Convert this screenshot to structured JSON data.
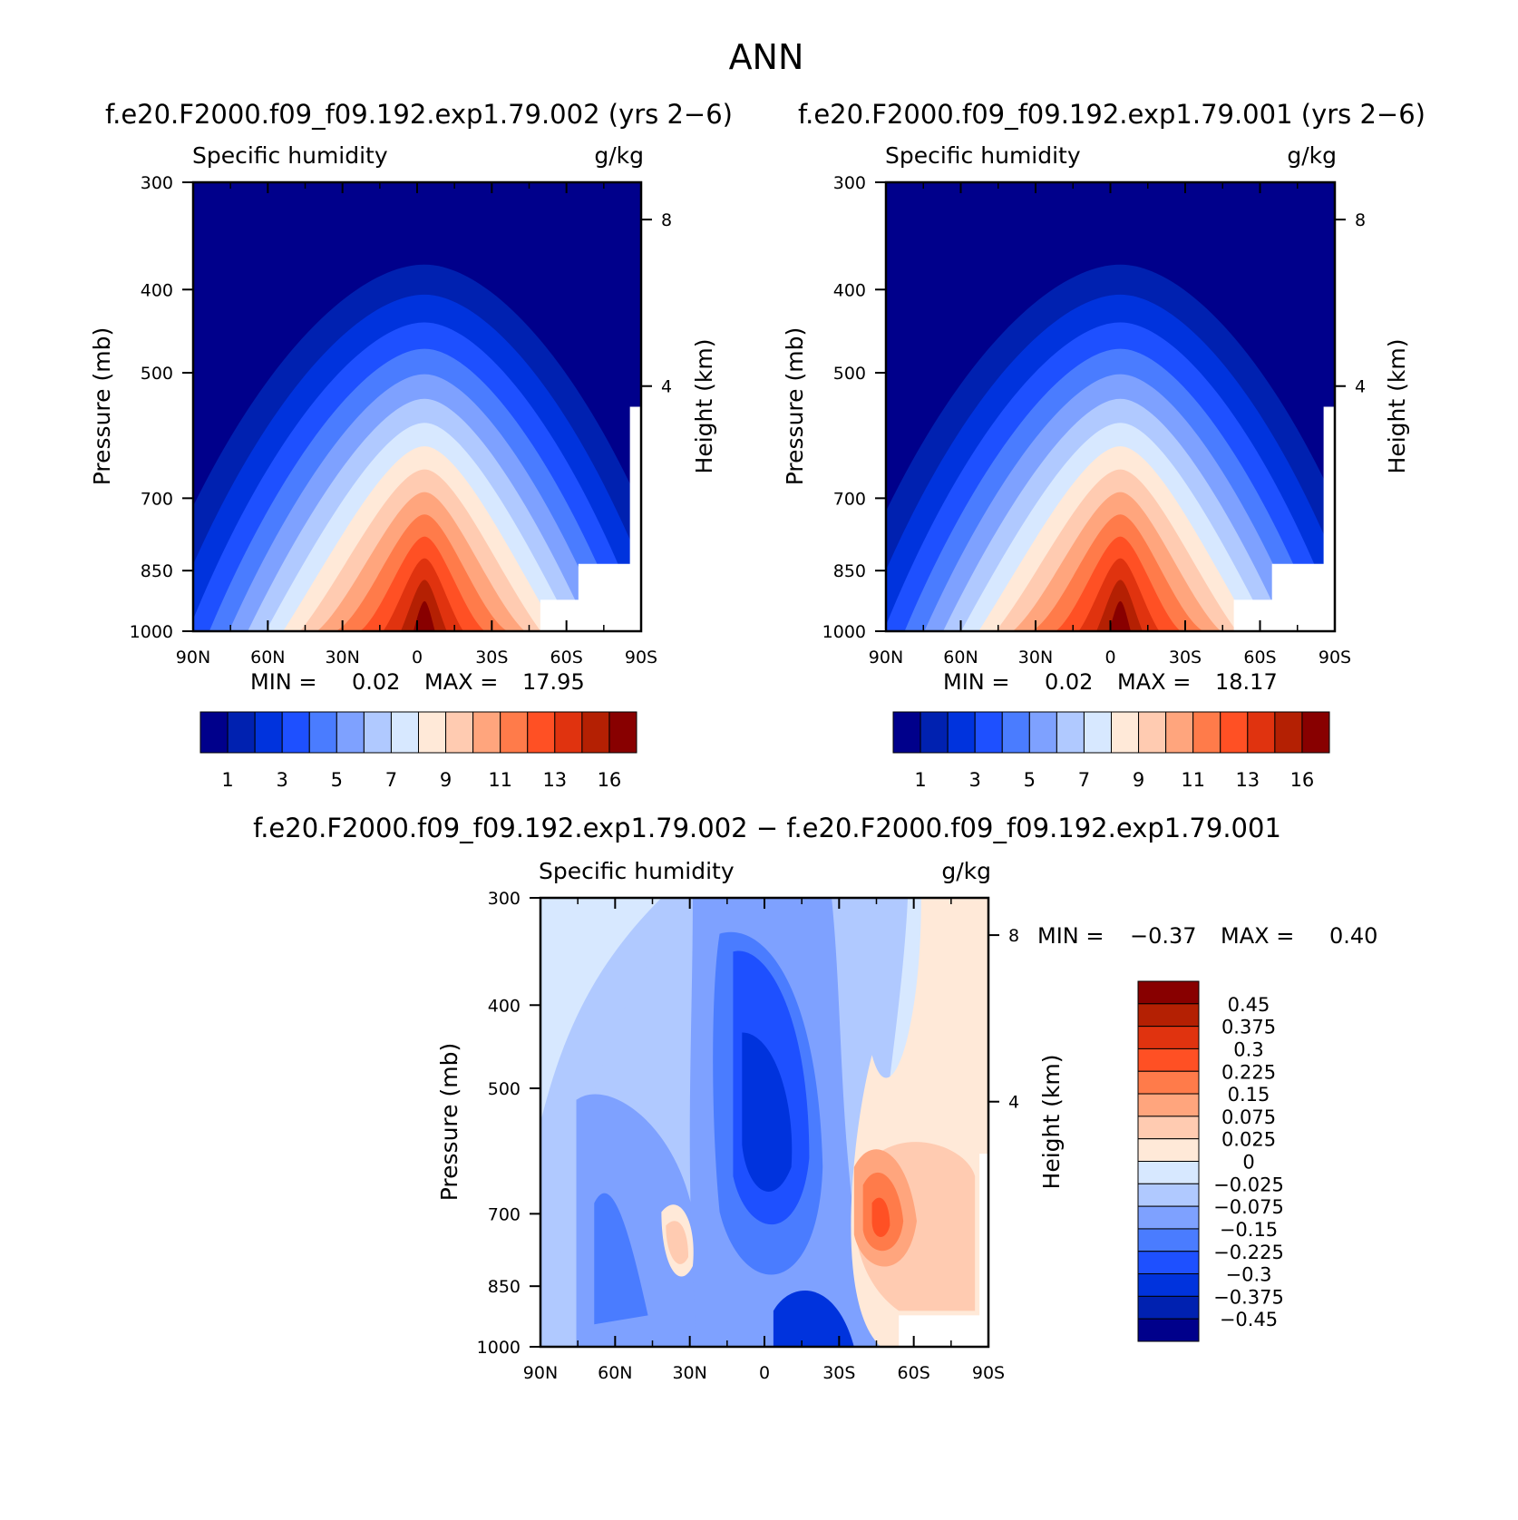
{
  "figure": {
    "title": "ANN",
    "panel1_header": "f.e20.F2000.f09_f09.192.exp1.79.002 (yrs 2−6)",
    "panel2_header": "f.e20.F2000.f09_f09.192.exp1.79.001 (yrs 2−6)",
    "diff_header": "f.e20.F2000.f09_f09.192.exp1.79.002 − f.e20.F2000.f09_f09.192.exp1.79.001"
  },
  "chart_data": [
    {
      "type": "heatmap",
      "variable": "Specific humidity",
      "units": "g/kg",
      "ylabel": "Pressure (mb)",
      "ylabel_right": "Height (km)",
      "x_ticks": [
        "90N",
        "60N",
        "30N",
        "0",
        "30S",
        "60S",
        "90S"
      ],
      "y_ticks": [
        "300",
        "400",
        "500",
        "700",
        "850",
        "1000"
      ],
      "y_right_ticks": [
        "8",
        "4"
      ],
      "min_label": "MIN =",
      "min": "0.02",
      "max_label": "MAX =",
      "max": "17.95",
      "colorbar_labels": [
        "1",
        "3",
        "5",
        "7",
        "9",
        "11",
        "13",
        "16"
      ],
      "peak_latitude": -3
    },
    {
      "type": "heatmap",
      "variable": "Specific humidity",
      "units": "g/kg",
      "ylabel": "Pressure (mb)",
      "ylabel_right": "Height (km)",
      "x_ticks": [
        "90N",
        "60N",
        "30N",
        "0",
        "30S",
        "60S",
        "90S"
      ],
      "y_ticks": [
        "300",
        "400",
        "500",
        "700",
        "850",
        "1000"
      ],
      "y_right_ticks": [
        "8",
        "4"
      ],
      "min_label": "MIN =",
      "min": "0.02",
      "max_label": "MAX =",
      "max": "18.17",
      "colorbar_labels": [
        "1",
        "3",
        "5",
        "7",
        "9",
        "11",
        "13",
        "16"
      ],
      "peak_latitude": -4
    },
    {
      "type": "heatmap",
      "variable": "Specific humidity",
      "units": "g/kg",
      "ylabel": "Pressure (mb)",
      "ylabel_right": "Height (km)",
      "x_ticks": [
        "90N",
        "60N",
        "30N",
        "0",
        "30S",
        "60S",
        "90S"
      ],
      "y_ticks": [
        "300",
        "400",
        "500",
        "700",
        "850",
        "1000"
      ],
      "y_right_ticks": [
        "8",
        "4"
      ],
      "min_label": "MIN =",
      "min": "−0.37",
      "max_label": "MAX =",
      "max": "0.40",
      "colorbar_labels": [
        "0.45",
        "0.375",
        "0.3",
        "0.225",
        "0.15",
        "0.075",
        "0.025",
        "0",
        "−0.025",
        "−0.075",
        "−0.15",
        "−0.225",
        "−0.3",
        "−0.375",
        "−0.45"
      ]
    }
  ],
  "colors": {
    "levels": [
      "#00008b",
      "#0021b0",
      "#0033dd",
      "#1e50ff",
      "#4a7cff",
      "#7ea1ff",
      "#b0c9ff",
      "#d7e8ff",
      "#ffe9d8",
      "#ffcbb1",
      "#ffa57d",
      "#ff7b4a",
      "#ff5024",
      "#e0330f",
      "#b42003",
      "#880000"
    ],
    "bg_panel": "#00008b"
  }
}
